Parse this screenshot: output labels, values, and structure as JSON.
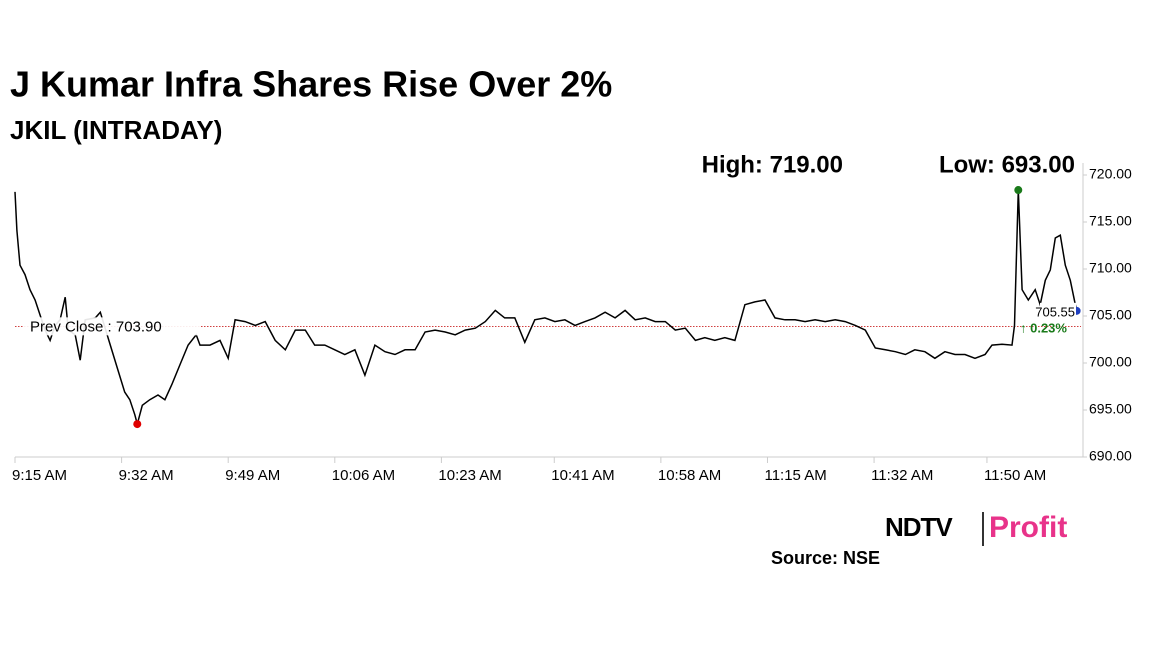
{
  "chart_data": {
    "type": "line",
    "title": "J Kumar Infra Shares Rise Over 2%",
    "subtitle": "JKIL (INTRADAY)",
    "high_label": "High: 719.00",
    "low_label": "Low: 693.00",
    "reference_line": {
      "value": 703.9,
      "label": "Prev Close : 703.90",
      "color": "#c00000"
    },
    "last_price": {
      "value": 705.55,
      "label": "705.55"
    },
    "change_label": "↑ 0.23%",
    "change_color": "#1a7a1a",
    "source": "Source: NSE",
    "logo": [
      "NDTV",
      "Profit"
    ],
    "xlim": [
      0,
      170
    ],
    "xticks": [
      {
        "value": 0,
        "label": "9:15 AM"
      },
      {
        "value": 17,
        "label": "9:32 AM"
      },
      {
        "value": 34,
        "label": "9:49 AM"
      },
      {
        "value": 51,
        "label": "10:06 AM"
      },
      {
        "value": 68,
        "label": "10:23 AM"
      },
      {
        "value": 86,
        "label": "10:41 AM"
      },
      {
        "value": 103,
        "label": "10:58 AM"
      },
      {
        "value": 120,
        "label": "11:15 AM"
      },
      {
        "value": 137,
        "label": "11:32 AM"
      },
      {
        "value": 155,
        "label": "11:50 AM"
      }
    ],
    "ylim": [
      690,
      720
    ],
    "yticks": [
      {
        "value": 690,
        "label": "690.00"
      },
      {
        "value": 695,
        "label": "695.00"
      },
      {
        "value": 700,
        "label": "700.00"
      },
      {
        "value": 705,
        "label": "705.00"
      },
      {
        "value": 710,
        "label": "710.00"
      },
      {
        "value": 715,
        "label": "715.00"
      },
      {
        "value": 720,
        "label": "720.00"
      }
    ],
    "grid": false,
    "high_color": "#1a7a1a",
    "low_color": "#e00000",
    "last_color": "#1f3fbf",
    "series": [
      {
        "color": "#000000",
        "x": [
          0,
          0.3,
          0.8,
          1.6,
          2.4,
          3.2,
          4.0,
          4.8,
          5.6,
          6.4,
          7.2,
          8,
          8.5,
          9.6,
          10.4,
          11.2,
          12.8,
          13.6,
          15.2,
          16.4,
          17.5,
          18.3,
          19.1,
          19.5,
          20.3,
          21.5,
          22.8,
          23.9,
          25,
          26.3,
          27.6,
          28.9,
          29.5,
          31.1,
          32.7,
          34,
          35.1,
          36.7,
          38.3,
          39.9,
          41.5,
          43.1,
          44.7,
          46.3,
          47.8,
          49.4,
          51,
          52.6,
          54.2,
          55.8,
          57.4,
          59,
          60.6,
          62.2,
          63.8,
          65.4,
          67,
          68.6,
          70.2,
          71.8,
          73.4,
          75,
          76.6,
          78.1,
          79.7,
          81.3,
          82.9,
          84.5,
          86.1,
          87.7,
          89.3,
          90.9,
          92.5,
          94.1,
          95.7,
          97.3,
          98.9,
          100.5,
          102.1,
          103.7,
          105.3,
          106.9,
          108.5,
          110.0,
          111.6,
          113.2,
          114.8,
          116.4,
          118,
          119.6,
          121.2,
          122.8,
          124.4,
          126,
          127.6,
          129.2,
          130.8,
          132.4,
          134,
          135.6,
          137.2,
          138.8,
          140.4,
          142.0,
          143.5,
          145.1,
          146.7,
          148.3,
          149.9,
          151.5,
          153.1,
          154.7,
          155.8,
          157.4,
          159,
          159.4,
          160,
          160.6,
          161.6,
          162.7,
          163.5,
          164.3,
          165.1,
          165.9,
          166.7,
          167.5,
          168.3,
          169.3
        ],
        "values": [
          718.2,
          714.1,
          710.4,
          709.4,
          707.8,
          706.7,
          705.1,
          703.5,
          702.4,
          704.0,
          704.6,
          707.0,
          703.5,
          703.0,
          700.3,
          704.6,
          704.8,
          705.4,
          701.9,
          699.3,
          696.9,
          696.1,
          694.5,
          693.5,
          695.5,
          696.1,
          696.6,
          696.1,
          697.7,
          699.8,
          701.9,
          703.0,
          701.9,
          701.9,
          702.4,
          700.5,
          704.6,
          704.4,
          704.0,
          704.4,
          702.4,
          701.4,
          703.5,
          703.5,
          701.9,
          701.9,
          701.4,
          700.9,
          701.4,
          698.7,
          701.9,
          701.2,
          700.9,
          701.4,
          701.4,
          703.3,
          703.5,
          703.3,
          703.0,
          703.5,
          703.7,
          704.4,
          705.6,
          704.8,
          704.8,
          702.2,
          704.6,
          704.8,
          704.4,
          704.6,
          704.0,
          704.4,
          704.8,
          705.4,
          704.8,
          705.6,
          704.6,
          704.8,
          704.4,
          704.4,
          703.5,
          703.7,
          702.4,
          702.7,
          702.4,
          702.7,
          702.4,
          706.2,
          706.5,
          706.7,
          704.8,
          704.6,
          704.6,
          704.4,
          704.6,
          704.4,
          704.6,
          704.4,
          704.0,
          703.5,
          701.6,
          701.4,
          701.2,
          700.9,
          701.4,
          701.2,
          700.5,
          701.2,
          700.9,
          700.9,
          700.5,
          700.9,
          701.9,
          702.0,
          701.9,
          704.0,
          718.4,
          707.8,
          706.7,
          707.8,
          706.2,
          708.8,
          709.9,
          713.3,
          713.6,
          710.4,
          708.8,
          705.55
        ]
      }
    ]
  }
}
